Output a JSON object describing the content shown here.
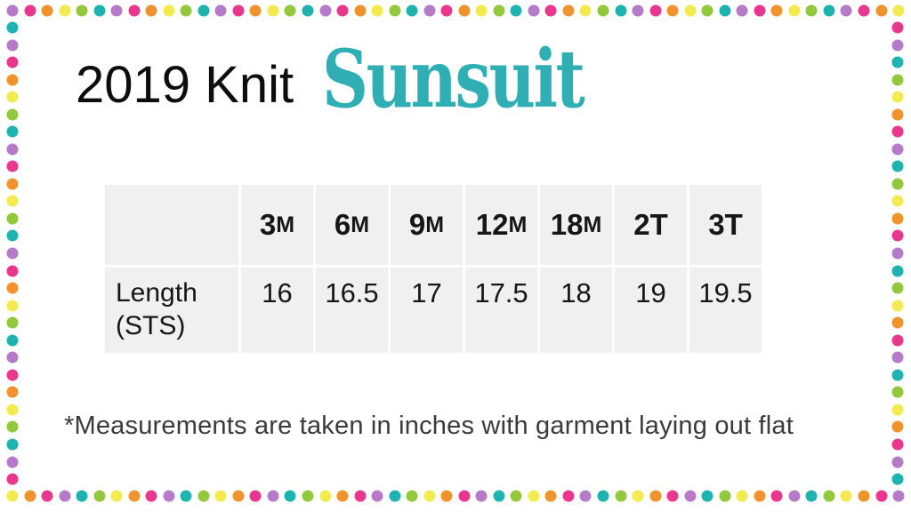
{
  "title": {
    "plain": "2019 Knit",
    "fancy": "Sunsuit"
  },
  "size_chart": {
    "columns": [
      {
        "label": "3M",
        "main": "3",
        "small": "M"
      },
      {
        "label": "6M",
        "main": "6",
        "small": "M"
      },
      {
        "label": "9M",
        "main": "9",
        "small": "M"
      },
      {
        "label": "12M",
        "main": "12",
        "small": "M"
      },
      {
        "label": "18M",
        "main": "18",
        "small": "M"
      },
      {
        "label": "2T",
        "main": "2T",
        "small": ""
      },
      {
        "label": "3T",
        "main": "3T",
        "small": ""
      }
    ],
    "rows": [
      {
        "header": "Length (STS)",
        "values": [
          "16",
          "16.5",
          "17",
          "17.5",
          "18",
          "19",
          "19.5"
        ]
      }
    ]
  },
  "footnote": "*Measurements are taken in inches with garment laying out flat",
  "colors": {
    "fancy_title_teal": "#2fafb4",
    "table_cell_bg": "#f0f0f0",
    "text_dark": "#161616"
  },
  "border_dots": {
    "palette": {
      "purple": "#b57bc8",
      "pink": "#e8378d",
      "orange": "#f0932d",
      "yellow": "#f2ea4e",
      "green": "#93c83d",
      "teal": "#1fb3b0"
    },
    "top_cycle": [
      "purple",
      "pink",
      "orange",
      "yellow",
      "green",
      "teal"
    ],
    "bottom_cycle": [
      "yellow",
      "orange",
      "pink",
      "purple",
      "teal",
      "green"
    ],
    "left_cycle": [
      "teal",
      "purple",
      "pink",
      "orange",
      "yellow",
      "green"
    ],
    "right_cycle": [
      "pink",
      "purple",
      "teal",
      "green",
      "yellow",
      "orange"
    ]
  }
}
